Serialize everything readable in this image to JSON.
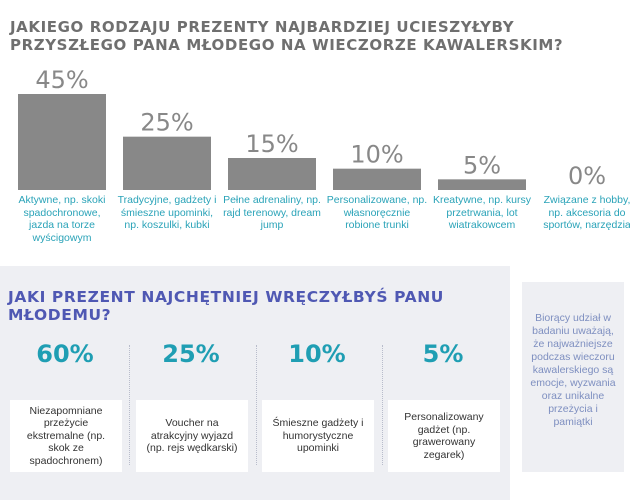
{
  "q1": {
    "title": "Jakiego rodzaju prezenty najbardziej ucieszyłyby przyszłego pana młodego na wieczorze kawalerskim?"
  },
  "chart_data": {
    "type": "bar",
    "title": "Jakiego rodzaju prezenty najbardziej ucieszyłyby przyszłego pana młodego na wieczorze kawalerskim?",
    "categories": [
      "Aktywne, np. skoki spadochronowe, jazda na torze wyścigowym",
      "Tradycyjne, gadżety i śmieszne upominki, np. koszulki, kubki",
      "Pełne adrenaliny, np. rajd terenowy, dream jump",
      "Personalizowane, np. własnoręcznie robione trunki",
      "Kreatywne, np. kursy przetrwania, lot wiatrakowcem",
      "Związane z hobby, np. akcesoria do sportów, narzędzia"
    ],
    "values": [
      45,
      25,
      15,
      10,
      5,
      0
    ],
    "value_labels": [
      "45%",
      "25%",
      "15%",
      "10%",
      "5%",
      "0%"
    ],
    "ylim": [
      0,
      45
    ],
    "bar_color": "#888888",
    "label_color": "#2aa3b8"
  },
  "q2": {
    "title": "Jaki prezent najchętniej wręczyłbyś panu młodemu?",
    "items": [
      {
        "pct": "60%",
        "label": "Niezapomniane przeżycie ekstremalne (np. skok ze spadochronem)"
      },
      {
        "pct": "25%",
        "label": "Voucher na atrakcyjny wyjazd (np. rejs wędkarski)"
      },
      {
        "pct": "10%",
        "label": "Śmieszne gadżety i humorystyczne upominki"
      },
      {
        "pct": "5%",
        "label": "Personalizowany gadżet (np. grawerowany zegarek)"
      }
    ]
  },
  "sidebar": {
    "note": "Biorący udział w badaniu uważają, że najważniejsze podczas wieczoru kawalerskiego są emocje, wyzwania oraz unikalne przeżycia i pamiątki"
  }
}
